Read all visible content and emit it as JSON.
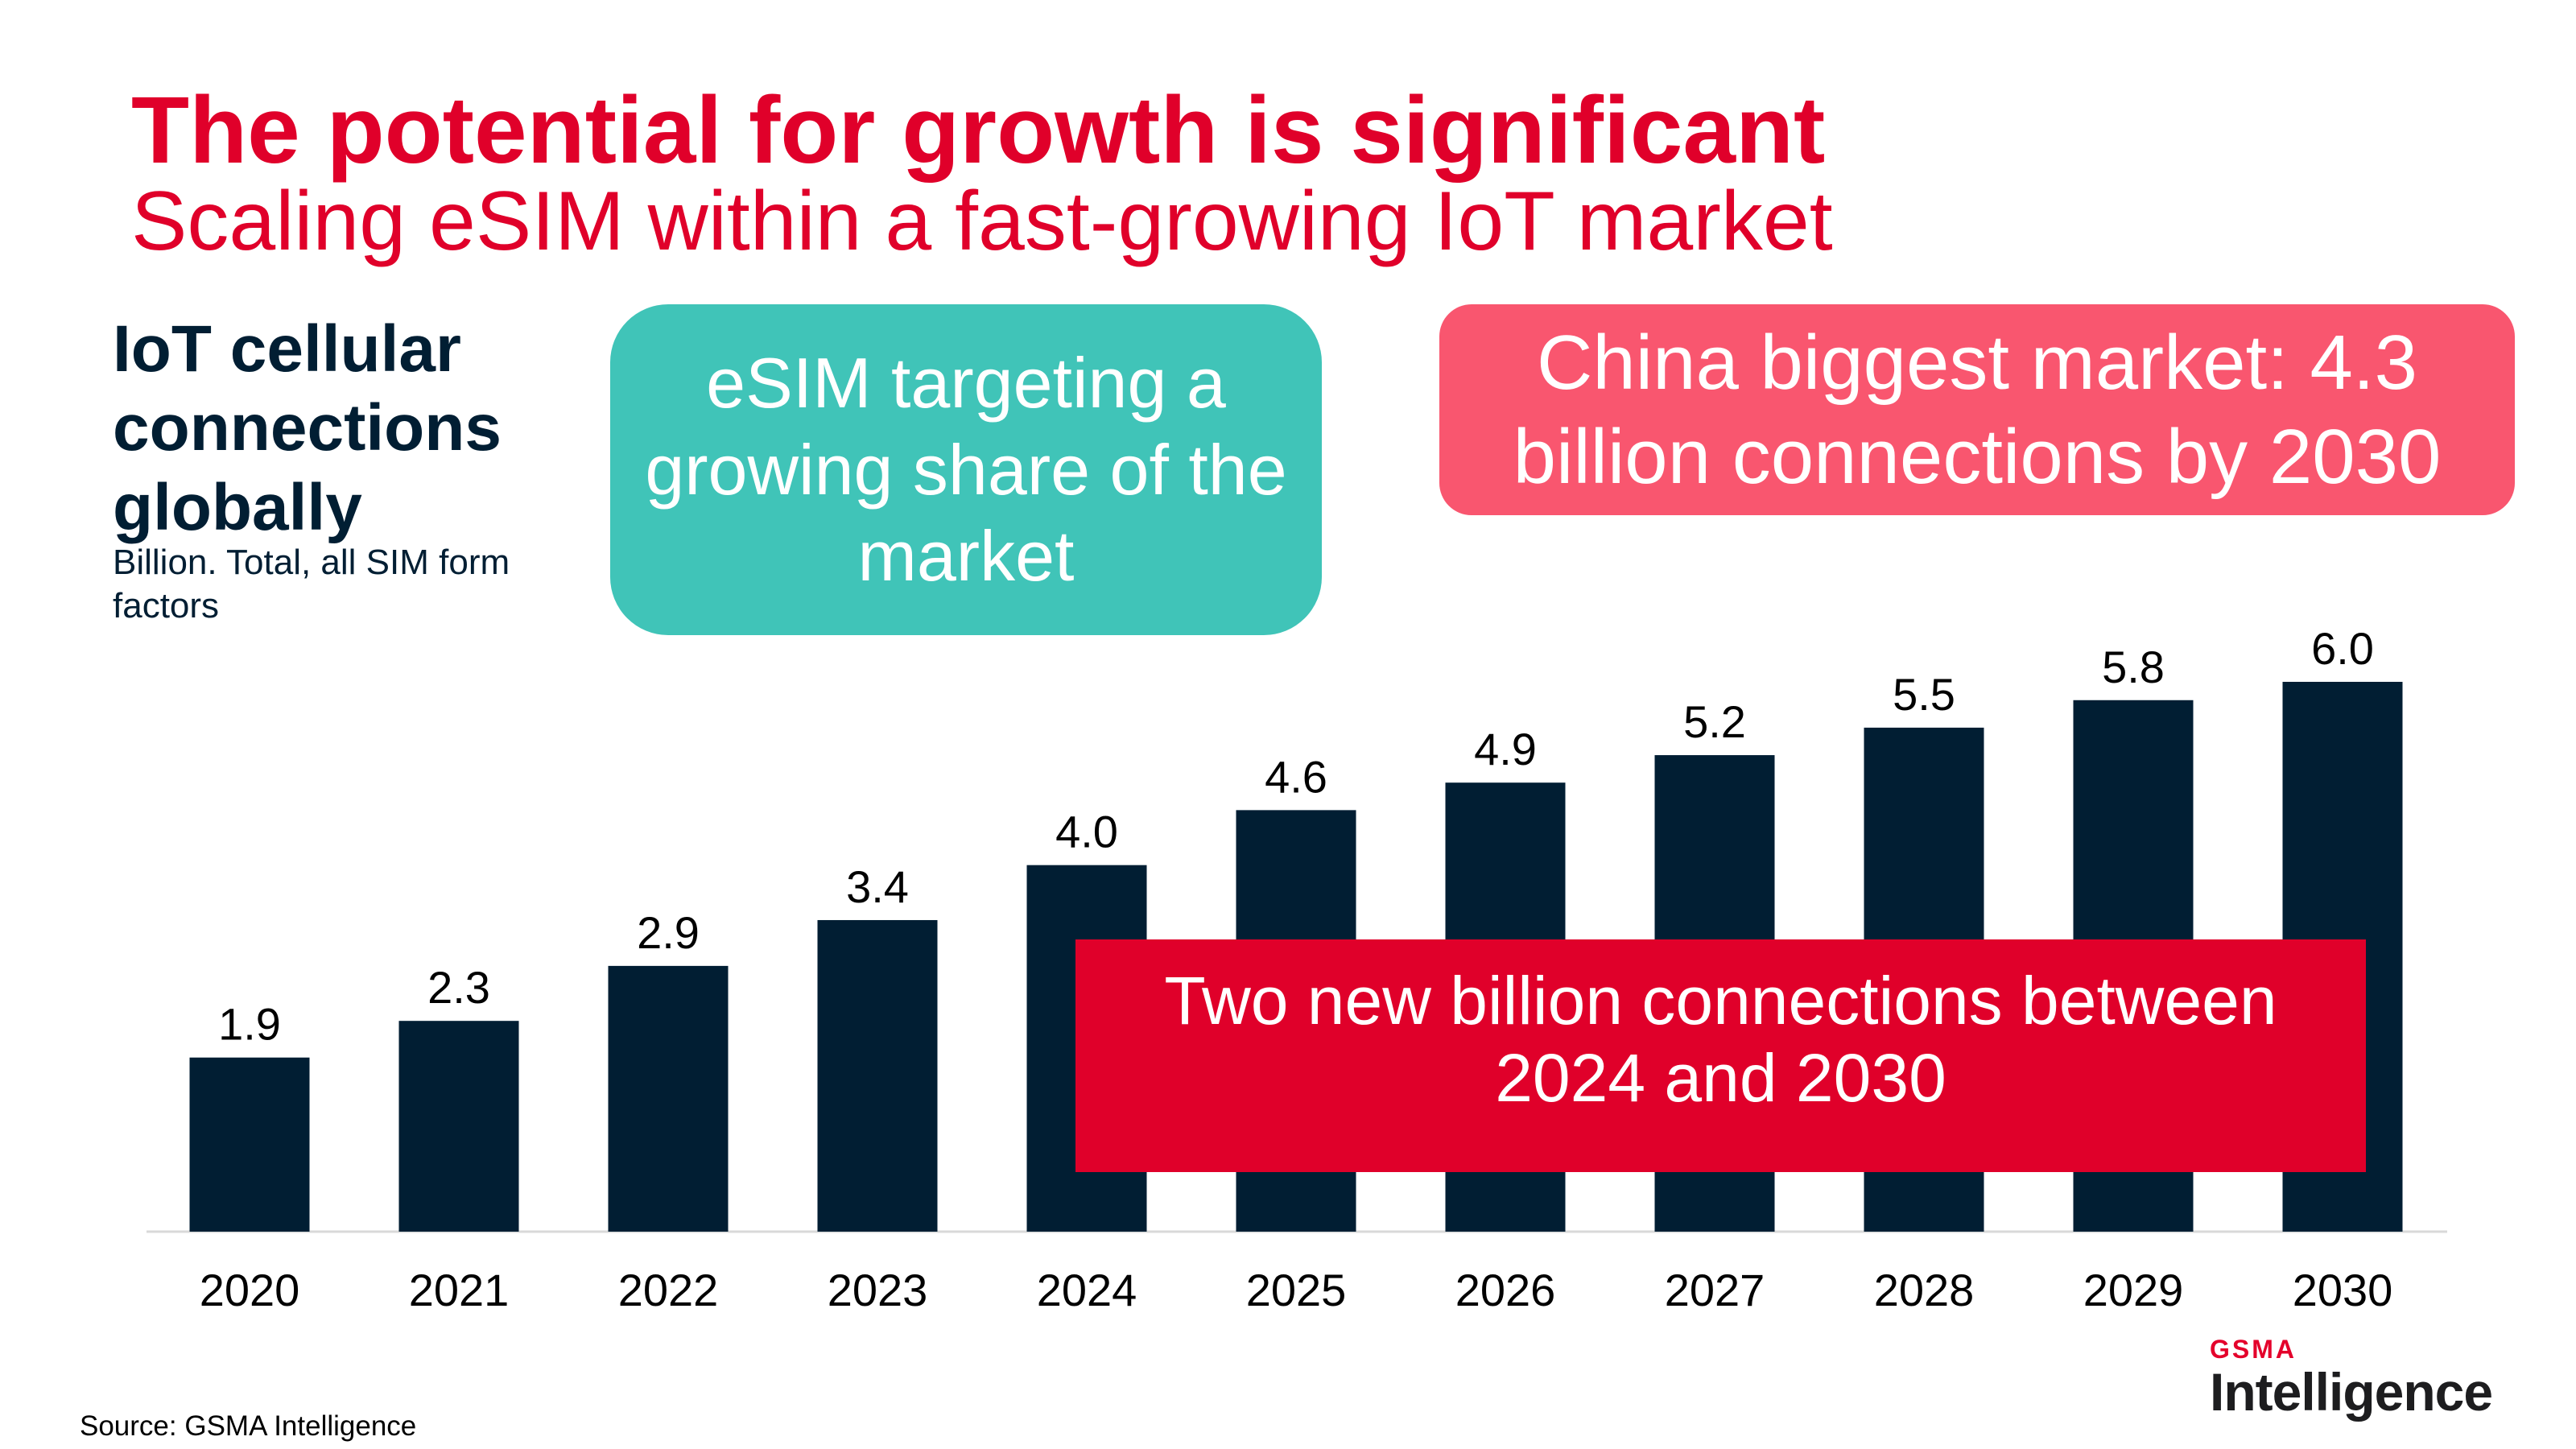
{
  "header": {
    "title": "The potential for growth is significant",
    "subtitle": "Scaling eSIM within a fast-growing IoT market"
  },
  "callouts": {
    "teal": "eSIM targeting a growing share of the market",
    "pink": "China biggest market: 4.3 billion connections by 2030",
    "red": "Two new billion connections between 2024 and 2030"
  },
  "colors": {
    "bar": "#011e33",
    "accent_red": "#e0002a",
    "teal": "#40c4b8",
    "pink": "#f9566f"
  },
  "chart_data": {
    "type": "bar",
    "title": "IoT cellular connections globally",
    "subtitle": "Billion. Total, all SIM form factors",
    "categories": [
      "2020",
      "2021",
      "2022",
      "2023",
      "2024",
      "2025",
      "2026",
      "2027",
      "2028",
      "2029",
      "2030"
    ],
    "values": [
      1.9,
      2.3,
      2.9,
      3.4,
      4.0,
      4.6,
      4.9,
      5.2,
      5.5,
      5.8,
      6.0
    ],
    "value_labels": [
      "1.9",
      "2.3",
      "2.9",
      "3.4",
      "4.0",
      "4.6",
      "4.9",
      "5.2",
      "5.5",
      "5.8",
      "6.0"
    ],
    "ylim": [
      0,
      6.0
    ],
    "grid": false,
    "legend": "none"
  },
  "footer": {
    "source": "Source: GSMA Intelligence",
    "logo_top": "GSMA",
    "logo_bottom": "Intelligence"
  }
}
